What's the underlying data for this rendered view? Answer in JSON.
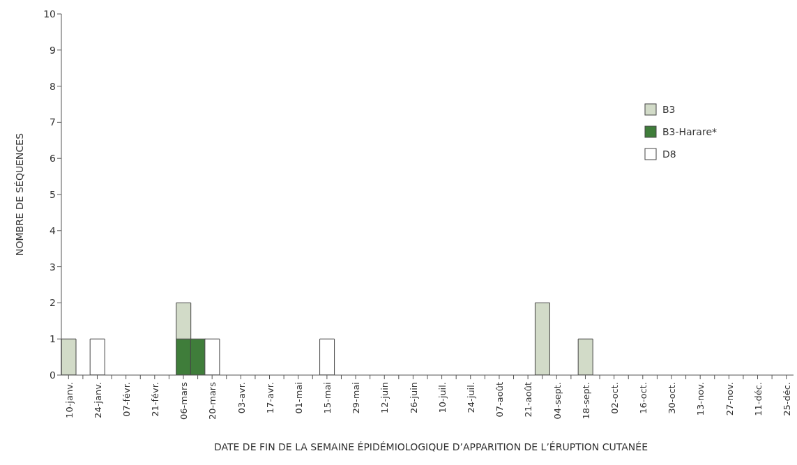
{
  "chart_data": {
    "type": "bar",
    "stacked": true,
    "xlabel": "DATE DE FIN DE LA SEMAINE ÉPIDÉMIOLOGIQUE D’APPARITION DE L’ÉRUPTION CUTANÉE",
    "ylabel": "NOMBRE DE SÉQUENCES",
    "categories": [
      "10-janv.",
      null,
      "24-janv.",
      null,
      "07-févr.",
      null,
      "21-févr.",
      null,
      "06-mars",
      null,
      "20-mars",
      null,
      "03-avr.",
      null,
      "17-avr.",
      null,
      "01-mai",
      null,
      "15-mai",
      null,
      "29-mai",
      null,
      "12-juin",
      null,
      "26-juin",
      null,
      "10-juil.",
      null,
      "24-juil.",
      null,
      "07-août",
      null,
      "21-août",
      null,
      "04-sept.",
      null,
      "18-sept.",
      null,
      "02-oct.",
      null,
      "16-oct.",
      null,
      "30-oct.",
      null,
      "13-nov.",
      null,
      "27-nov.",
      null,
      "11-déc.",
      null,
      "25-déc."
    ],
    "series": [
      {
        "name": "B3",
        "color": "#d2dbc8",
        "values": [
          1,
          null,
          null,
          null,
          null,
          null,
          null,
          null,
          1,
          null,
          null,
          null,
          null,
          null,
          null,
          null,
          null,
          null,
          null,
          null,
          null,
          null,
          null,
          null,
          null,
          null,
          null,
          null,
          null,
          null,
          null,
          null,
          null,
          2,
          null,
          null,
          1,
          null,
          null,
          null,
          null,
          null,
          null,
          null,
          null,
          null,
          null,
          null,
          null,
          null,
          null
        ]
      },
      {
        "name": "B3-Harare*",
        "color": "#3f7d3a",
        "values": [
          null,
          null,
          null,
          null,
          null,
          null,
          null,
          null,
          1,
          1,
          null,
          null,
          null,
          null,
          null,
          null,
          null,
          null,
          null,
          null,
          null,
          null,
          null,
          null,
          null,
          null,
          null,
          null,
          null,
          null,
          null,
          null,
          null,
          null,
          null,
          null,
          null,
          null,
          null,
          null,
          null,
          null,
          null,
          null,
          null,
          null,
          null,
          null,
          null,
          null,
          null
        ]
      },
      {
        "name": "D8",
        "color": "#ffffff",
        "values": [
          null,
          null,
          1,
          null,
          null,
          null,
          null,
          null,
          null,
          null,
          1,
          null,
          null,
          null,
          null,
          null,
          null,
          null,
          1,
          null,
          null,
          null,
          null,
          null,
          null,
          null,
          null,
          null,
          null,
          null,
          null,
          null,
          null,
          null,
          null,
          null,
          null,
          null,
          null,
          null,
          null,
          null,
          null,
          null,
          null,
          null,
          null,
          null,
          null,
          null,
          null
        ]
      }
    ],
    "ylim": [
      0,
      10
    ],
    "yticks": [
      0,
      1,
      2,
      3,
      4,
      5,
      6,
      7,
      8,
      9,
      10
    ],
    "grid": false,
    "legend": "top right"
  }
}
